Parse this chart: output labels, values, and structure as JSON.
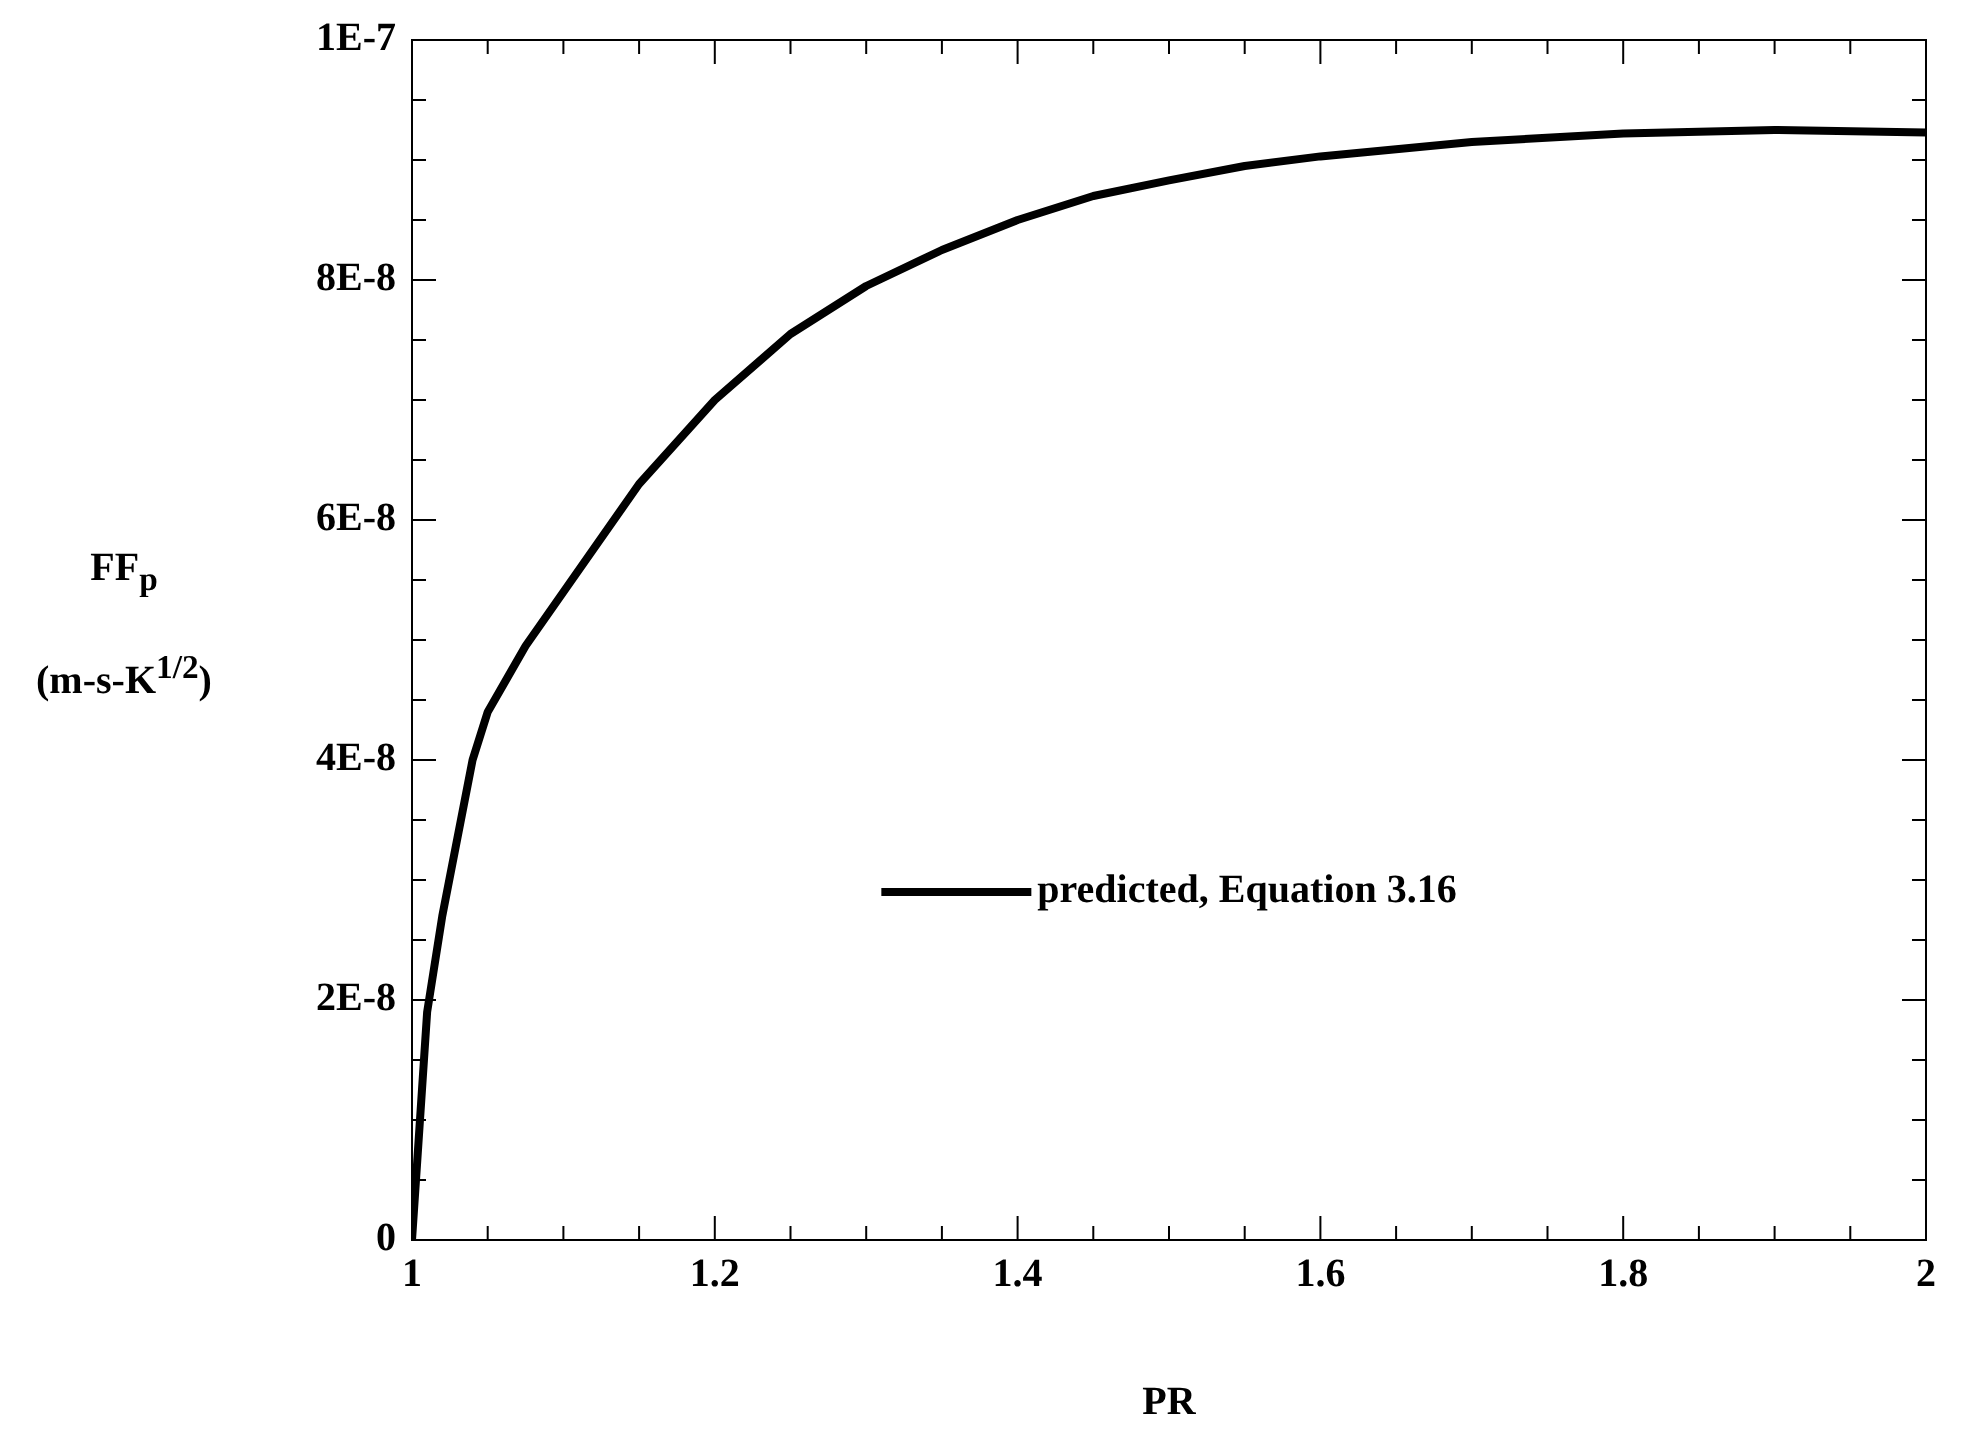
{
  "chart_data": {
    "type": "line",
    "xlabel": "PR",
    "ylabel": "FF$_{p}$ (m-s-K$^{1/2}$)",
    "x": [
      1,
      1.01,
      1.02,
      1.04,
      1.05,
      1.075,
      1.1,
      1.15,
      1.2,
      1.25,
      1.3,
      1.35,
      1.4,
      1.45,
      1.5,
      1.55,
      1.6,
      1.7,
      1.8,
      1.9,
      2
    ],
    "series": [
      {
        "name": "predicted, Equation 3.16",
        "color": "#000000",
        "values": [
          0,
          1.9e-08,
          2.7e-08,
          4e-08,
          4.4e-08,
          4.95e-08,
          5.4e-08,
          6.3e-08,
          7e-08,
          7.55e-08,
          7.95e-08,
          8.25e-08,
          8.5e-08,
          8.7e-08,
          8.83e-08,
          8.95e-08,
          9.03e-08,
          9.15e-08,
          9.22e-08,
          9.25e-08,
          9.23e-08
        ]
      }
    ],
    "xlim": [
      1,
      2
    ],
    "xticks": [
      1,
      {
        "value": 1.05,
        "label": null
      },
      {
        "value": 1.1,
        "label": null
      },
      {
        "value": 1.15,
        "label": null
      },
      1.2,
      {
        "value": 1.25,
        "label": null
      },
      {
        "value": 1.3,
        "label": null
      },
      {
        "value": 1.35,
        "label": null
      },
      1.4,
      {
        "value": 1.45,
        "label": null
      },
      {
        "value": 1.5,
        "label": null
      },
      {
        "value": 1.55,
        "label": null
      },
      1.6,
      {
        "value": 1.65,
        "label": null
      },
      {
        "value": 1.7,
        "label": null
      },
      {
        "value": 1.75,
        "label": null
      },
      1.8,
      {
        "value": 1.85,
        "label": null
      },
      {
        "value": 1.9,
        "label": null
      },
      {
        "value": 1.95,
        "label": null
      },
      2
    ],
    "ylim": [
      0,
      1e-07
    ],
    "yticks": [
      0,
      {
        "value": 5e-09,
        "label": null
      },
      {
        "value": 1e-08,
        "label": null
      },
      {
        "value": 1.5e-08,
        "label": null
      },
      {
        "value": 2e-08,
        "label": "2E-8"
      },
      {
        "value": 2.5e-08,
        "label": null
      },
      {
        "value": 3e-08,
        "label": null
      },
      {
        "value": 3.5e-08,
        "label": null
      },
      {
        "value": 4e-08,
        "label": "4E-8"
      },
      {
        "value": 4.5e-08,
        "label": null
      },
      {
        "value": 5e-08,
        "label": null
      },
      {
        "value": 5.5e-08,
        "label": null
      },
      {
        "value": 6e-08,
        "label": "6E-8"
      },
      {
        "value": 6.5e-08,
        "label": null
      },
      {
        "value": 7e-08,
        "label": null
      },
      {
        "value": 7.5e-08,
        "label": null
      },
      {
        "value": 8e-08,
        "label": "8E-8"
      },
      {
        "value": 8.5e-08,
        "label": null
      },
      {
        "value": 9e-08,
        "label": null
      },
      {
        "value": 9.5e-08,
        "label": null
      },
      {
        "value": 1e-07,
        "label": "1E-7"
      }
    ],
    "grid": false,
    "legend": "bottom",
    "marker": "none",
    "line_style": "solid"
  }
}
